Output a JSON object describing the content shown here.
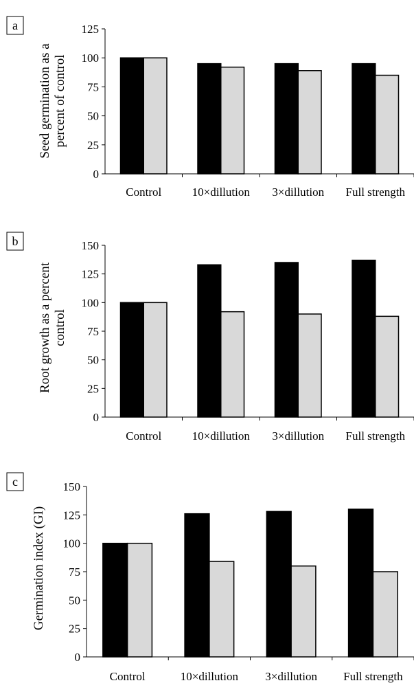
{
  "colors": {
    "series_dark": "#000000",
    "series_light": "#d9d9d9",
    "axis": "#000000"
  },
  "chart_data": [
    {
      "type": "bar",
      "panel_letter": "a",
      "categories": [
        "Control",
        "10×dillution",
        "3×dillution",
        "Full strength"
      ],
      "series": [
        {
          "values": [
            100,
            95,
            95,
            95
          ]
        },
        {
          "values": [
            100,
            92,
            89,
            85
          ]
        }
      ],
      "ylabel_lines": [
        "Seed germination as a",
        "percent of control"
      ],
      "ylim": [
        0,
        125
      ],
      "yticks": [
        "0",
        "25",
        "50",
        "75",
        "100",
        "125"
      ]
    },
    {
      "type": "bar",
      "panel_letter": "b",
      "categories": [
        "Control",
        "10×dillution",
        "3×dillution",
        "Full strength"
      ],
      "series": [
        {
          "values": [
            100,
            133,
            135,
            137
          ]
        },
        {
          "values": [
            100,
            92,
            90,
            88
          ]
        }
      ],
      "ylabel_lines": [
        "Root growth as a percent",
        "control"
      ],
      "ylim": [
        0,
        150
      ],
      "yticks": [
        "0",
        "25",
        "50",
        "75",
        "100",
        "125",
        "150"
      ]
    },
    {
      "type": "bar",
      "panel_letter": "c",
      "categories": [
        "Control",
        "10×dillution",
        "3×dillution",
        "Full strength"
      ],
      "series": [
        {
          "values": [
            100,
            126,
            128,
            130
          ]
        },
        {
          "values": [
            100,
            84,
            80,
            75
          ]
        }
      ],
      "ylabel_lines": [
        "Germination index (GI)"
      ],
      "ylim": [
        0,
        150
      ],
      "yticks": [
        "0",
        "25",
        "50",
        "75",
        "100",
        "125",
        "150"
      ]
    }
  ]
}
